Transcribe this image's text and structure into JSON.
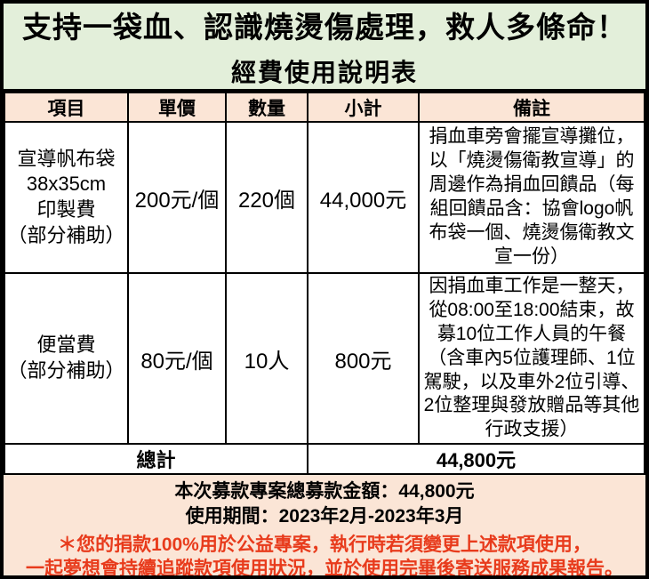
{
  "title": {
    "line1": "支持一袋血、認識燒燙傷處理，救人多條命！",
    "line2": "經費使用說明表"
  },
  "table": {
    "headers": [
      "項目",
      "單價",
      "數量",
      "小計",
      "備註"
    ],
    "rows": [
      {
        "item_lines": [
          "宣導帆布袋",
          "38x35cm",
          "印製費",
          "（部分補助）"
        ],
        "unit_price": "200元/個",
        "quantity": "220個",
        "subtotal": "44,000元",
        "remark": "捐血車旁會擺宣導攤位，以「燒燙傷衛教宣導」的周邊作為捐血回饋品（每組回饋品含：協會logo帆布袋一個、燒燙傷衛教文宣一份）"
      },
      {
        "item_lines": [
          "便當費",
          "（部分補助）"
        ],
        "unit_price": "80元/個",
        "quantity": "10人",
        "subtotal": "800元",
        "remark": "因捐血車工作是一整天，從08:00至18:00結束，故募10位工作人員的午餐（含車內5位護理師、1位駕駛，以及車外2位引導、2位整理與發放贈品等其他行政支援）"
      }
    ],
    "total_label": "總計",
    "total_value": "44,800元"
  },
  "summary": {
    "total_line": "本次募款專案總募款金額：44,800元",
    "period_line": "使用期間：2023年2月-2023年3月",
    "notice_line1": "＊您的捐款100%用於公益專案，執行時若須變更上述款項使用，",
    "notice_line2": "一起夢想會持續追蹤款項使用狀況，並於使用完畢後寄送服務成果報告。"
  },
  "colors": {
    "title_bg": "#e3efda",
    "header_bg": "#fbe5d6",
    "summary_bg": "#fbe5d6",
    "cell_bg": "#ffffff",
    "border": "#000000",
    "notice_red": "#e83b1c"
  }
}
